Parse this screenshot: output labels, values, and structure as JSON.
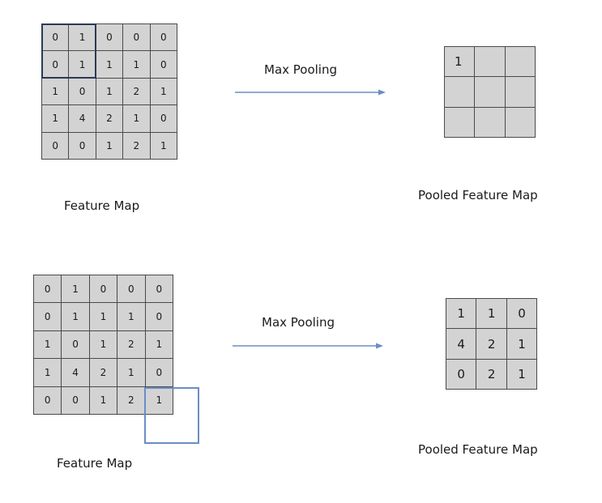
{
  "top": {
    "feature_map": [
      [
        0,
        1,
        0,
        0,
        0
      ],
      [
        0,
        1,
        1,
        1,
        0
      ],
      [
        1,
        0,
        1,
        2,
        1
      ],
      [
        1,
        4,
        2,
        1,
        0
      ],
      [
        0,
        0,
        1,
        2,
        1
      ]
    ],
    "operation_label": "Max Pooling",
    "pooled_map": [
      [
        1,
        "",
        ""
      ],
      [
        "",
        "",
        ""
      ],
      [
        "",
        "",
        ""
      ]
    ],
    "feature_map_label": "Feature Map",
    "pooled_map_label": "Pooled Feature Map"
  },
  "bottom": {
    "feature_map": [
      [
        0,
        1,
        0,
        0,
        0
      ],
      [
        0,
        1,
        1,
        1,
        0
      ],
      [
        1,
        0,
        1,
        2,
        1
      ],
      [
        1,
        4,
        2,
        1,
        0
      ],
      [
        0,
        0,
        1,
        2,
        1
      ]
    ],
    "operation_label": "Max Pooling",
    "pooled_map": [
      [
        1,
        1,
        0
      ],
      [
        4,
        2,
        1
      ],
      [
        0,
        2,
        1
      ]
    ],
    "feature_map_label": "Feature Map",
    "pooled_map_label": "Pooled Feature Map"
  },
  "colors": {
    "cell_fill": "#d3d3d3",
    "window_top": "#2b3a55",
    "window_bottom": "#6a8ec4",
    "arrow": "#6a8ec4"
  }
}
